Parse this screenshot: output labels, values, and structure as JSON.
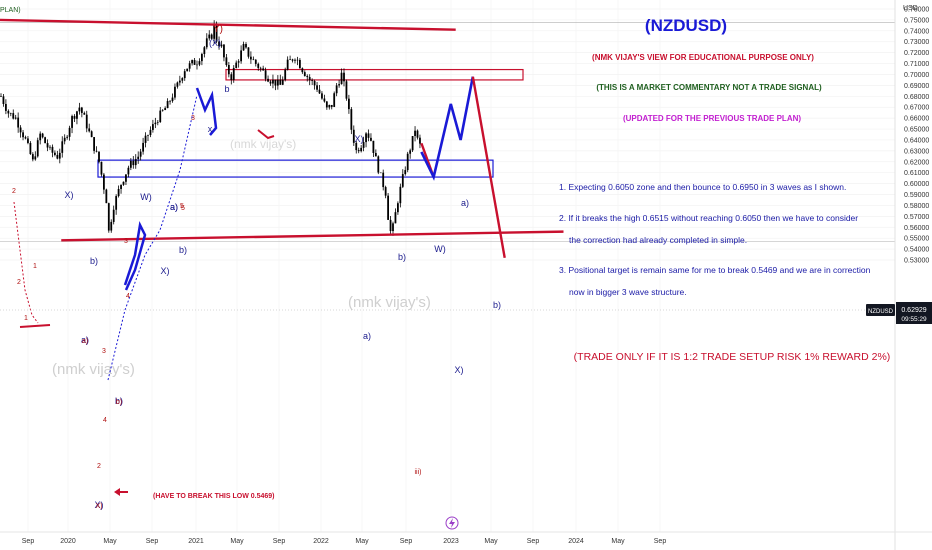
{
  "header": {
    "left_fragment": "PLAN)",
    "title": "(NZDUSD)",
    "line1": "(NMK VIJAY'S VIEW FOR EDUCATIONAL PURPOSE ONLY)",
    "line2": "(THIS IS A MARKET COMMENTARY NOT A TRADE SIGNAL)",
    "line3": "(UPDATED FOR THE PREVIOUS TRADE PLAN)"
  },
  "notes": [
    "1. Expecting 0.6050 zone and then bounce to 0.6950 in 3 waves as I shown.",
    "2. If it breaks the high 0.6515 without reaching 0.6050 then  we have to consider",
    "the correction had already completed in simple.",
    "3. Positional target is remain same for me to break 0.5469 and we are in correction",
    "now in bigger 3 wave structure."
  ],
  "risk_note": "(TRADE ONLY IF IT IS 1:2 TRADE SETUP RISK 1% REWARD 2%)",
  "low_note": "(HAVE TO BREAK THIS LOW 0.5469)",
  "watermarks": [
    "(nmk vijay's)",
    "(nmk vijay's)",
    "(nmk vijay's)"
  ],
  "price_axis": {
    "currency": "USD",
    "symbol_tag": "NZDUSD",
    "last_price": "0.62929",
    "countdown": "09:55:29"
  },
  "colors": {
    "candle": "#000000",
    "trendline": "#c8102e",
    "box_red": "#c8102e",
    "box_blue": "#1a1ad6",
    "projection_blue": "#1a1ad6",
    "projection_red": "#c8102e",
    "title_blue": "#1a1ad6",
    "note_blue": "#1a1aa6",
    "line1_red": "#c8102e",
    "line2_green": "#1f5f1f",
    "line3_magenta": "#c21fd0",
    "label_blue": "#1a1a8c",
    "label_red": "#b01010",
    "price_tag_bg": "#131722"
  },
  "chart_data": {
    "type": "candlestick",
    "symbol": "NZDUSD",
    "ylim": [
      0.525,
      0.765
    ],
    "x_ticks": [
      "Sep",
      "2020",
      "May",
      "Sep",
      "2021",
      "May",
      "Sep",
      "2022",
      "May",
      "Sep",
      "2023",
      "May",
      "Sep",
      "2024",
      "May",
      "Sep"
    ],
    "y_ticks": [
      "0.76000",
      "0.75000",
      "0.74000",
      "0.73000",
      "0.72000",
      "0.71000",
      "0.70000",
      "0.69000",
      "0.68000",
      "0.67000",
      "0.66000",
      "0.65000",
      "0.64000",
      "0.63000",
      "0.62000",
      "0.61000",
      "0.60000",
      "0.59000",
      "0.58000",
      "0.57000",
      "0.56000",
      "0.55000",
      "0.54000",
      "0.53000"
    ],
    "price_series": [
      [
        0,
        0.68
      ],
      [
        3,
        0.665
      ],
      [
        6,
        0.66
      ],
      [
        10,
        0.64
      ],
      [
        13,
        0.62
      ],
      [
        16,
        0.645
      ],
      [
        20,
        0.63
      ],
      [
        23,
        0.625
      ],
      [
        26,
        0.64
      ],
      [
        29,
        0.66
      ],
      [
        32,
        0.67
      ],
      [
        34,
        0.66
      ],
      [
        37,
        0.64
      ],
      [
        40,
        0.62
      ],
      [
        43,
        0.585
      ],
      [
        44,
        0.556
      ],
      [
        46,
        0.58
      ],
      [
        49,
        0.6
      ],
      [
        52,
        0.615
      ],
      [
        56,
        0.625
      ],
      [
        60,
        0.645
      ],
      [
        64,
        0.66
      ],
      [
        68,
        0.672
      ],
      [
        72,
        0.69
      ],
      [
        75,
        0.705
      ],
      [
        78,
        0.71
      ],
      [
        80,
        0.712
      ],
      [
        82,
        0.72
      ],
      [
        84,
        0.73
      ],
      [
        86,
        0.736
      ],
      [
        87,
        0.745
      ],
      [
        88,
        0.732
      ],
      [
        90,
        0.725
      ],
      [
        92,
        0.705
      ],
      [
        94,
        0.698
      ],
      [
        96,
        0.71
      ],
      [
        99,
        0.725
      ],
      [
        102,
        0.715
      ],
      [
        106,
        0.705
      ],
      [
        110,
        0.695
      ],
      [
        114,
        0.69
      ],
      [
        117,
        0.71
      ],
      [
        120,
        0.717
      ],
      [
        123,
        0.705
      ],
      [
        126,
        0.695
      ],
      [
        129,
        0.688
      ],
      [
        131,
        0.678
      ],
      [
        133,
        0.668
      ],
      [
        135,
        0.672
      ],
      [
        137,
        0.69
      ],
      [
        139,
        0.7
      ],
      [
        141,
        0.68
      ],
      [
        143,
        0.65
      ],
      [
        145,
        0.63
      ],
      [
        147,
        0.636
      ],
      [
        149,
        0.648
      ],
      [
        151,
        0.64
      ],
      [
        153,
        0.622
      ],
      [
        155,
        0.606
      ],
      [
        157,
        0.592
      ],
      [
        158,
        0.57
      ],
      [
        159,
        0.556
      ],
      [
        160,
        0.56
      ],
      [
        162,
        0.585
      ],
      [
        164,
        0.605
      ],
      [
        166,
        0.625
      ],
      [
        168,
        0.64
      ],
      [
        169,
        0.65
      ],
      [
        170,
        0.64
      ],
      [
        172,
        0.63
      ]
    ],
    "projection": {
      "blue_waves": [
        [
          172,
          0.629
        ],
        [
          177,
          0.606
        ],
        [
          184,
          0.673
        ],
        [
          188,
          0.64
        ],
        [
          193,
          0.698
        ]
      ],
      "red_leg": [
        [
          193,
          0.698
        ],
        [
          206,
          0.532
        ]
      ],
      "red_drop_into_start": [
        [
          172,
          0.637
        ],
        [
          177,
          0.606
        ]
      ]
    },
    "trendlines": [
      {
        "from": [
          0,
          0.75
        ],
        "to": [
          186,
          0.741
        ]
      },
      {
        "from": [
          25,
          0.548
        ],
        "to": [
          230,
          0.556
        ]
      }
    ],
    "zones": [
      {
        "color": "red",
        "top": 0.7045,
        "bottom": 0.695
      },
      {
        "color": "blue",
        "top": 0.6215,
        "bottom": 0.606
      }
    ],
    "horizontal_lines": [
      0.5469,
      0.7475
    ],
    "wave_labels": {
      "blue": [
        "(X)",
        "b",
        "X)",
        "X)",
        "b)",
        "W)",
        "a)",
        "a)",
        "b)",
        "X)",
        "W)",
        "a)",
        "b)",
        "X)",
        "a)",
        "b)",
        "x",
        "b)",
        "a)",
        "X)"
      ],
      "red": [
        "Y)",
        "2",
        "1",
        "3",
        "4",
        "5",
        "2",
        "4",
        "3",
        "X)",
        "b)",
        "a)",
        "3",
        "5",
        "2",
        "1",
        "iii)"
      ]
    }
  }
}
